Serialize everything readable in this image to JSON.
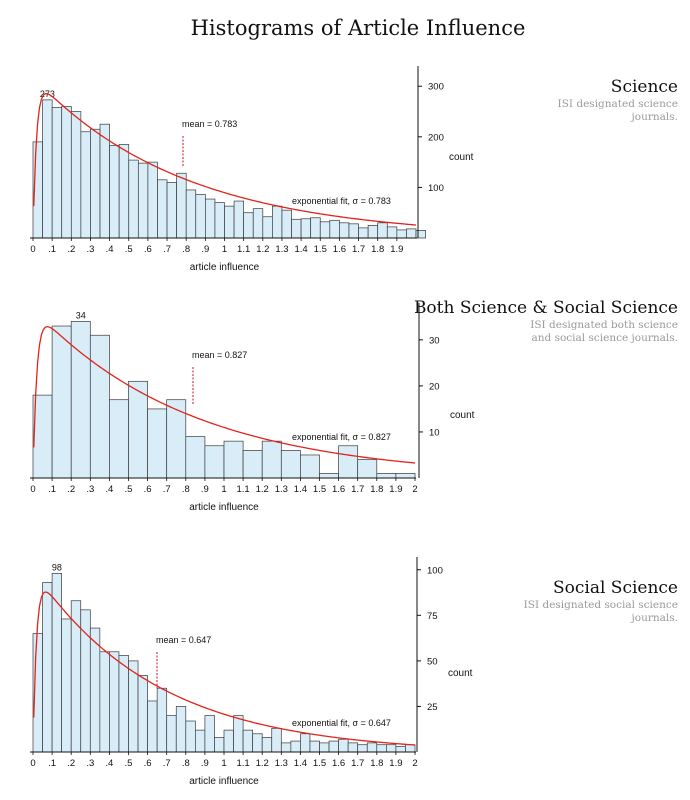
{
  "page_title": "Histograms of Article Influence",
  "chart_data": [
    {
      "type": "bar",
      "title": "Science",
      "description": [
        "ISI designated science",
        "journals."
      ],
      "xlabel": "article influence",
      "ylabel": "count",
      "xlim": [
        0,
        2
      ],
      "ylim": [
        0,
        340
      ],
      "x_ticks": [
        "0",
        ".1",
        ".2",
        ".3",
        ".4",
        ".5",
        ".6",
        ".7",
        ".8",
        ".9",
        "1",
        "1.1",
        "1.2",
        "1.3",
        "1.4",
        "1.5",
        "1.6",
        "1.7",
        "1.8",
        "1.9"
      ],
      "y_ticks": [
        100,
        200,
        300
      ],
      "bin_width": 0.05,
      "values": [
        190,
        273,
        258,
        260,
        250,
        210,
        215,
        225,
        183,
        185,
        154,
        148,
        150,
        115,
        110,
        128,
        95,
        86,
        77,
        70,
        63,
        73,
        50,
        58,
        42,
        63,
        55,
        37,
        38,
        40,
        32,
        35,
        30,
        28,
        20,
        25,
        30,
        22,
        16,
        18,
        15
      ],
      "peak_label": "273",
      "mean": 0.783,
      "mean_label": "mean = 0.783",
      "fit_label": "exponential fit,  σ = 0.783"
    },
    {
      "type": "bar",
      "title": "Both Science & Social Science",
      "description": [
        "ISI designated both science",
        "and social science journals."
      ],
      "xlabel": "article influence",
      "ylabel": "count",
      "xlim": [
        0,
        2
      ],
      "ylim": [
        0,
        38
      ],
      "x_ticks": [
        "0",
        ".1",
        ".2",
        ".3",
        ".4",
        ".5",
        ".6",
        ".7",
        ".8",
        ".9",
        "1",
        "1.1",
        "1.2",
        "1.3",
        "1.4",
        "1.5",
        "1.6",
        "1.7",
        "1.8",
        "1.9",
        "2"
      ],
      "y_ticks": [
        10,
        20,
        30
      ],
      "bin_width": 0.1,
      "values": [
        18,
        33,
        34,
        31,
        17,
        21,
        15,
        17,
        9,
        7,
        8,
        6,
        8,
        6,
        5,
        1,
        7,
        4,
        1,
        1
      ],
      "peak_label": "34",
      "mean": 0.827,
      "mean_label": "mean = 0.827",
      "fit_label": "exponential fit,  σ = 0.827"
    },
    {
      "type": "bar",
      "title": "Social Science",
      "description": [
        "ISI designated social science",
        "journals."
      ],
      "xlabel": "article influence",
      "ylabel": "count",
      "xlim": [
        0,
        2
      ],
      "ylim": [
        0,
        107
      ],
      "x_ticks": [
        "0",
        ".1",
        ".2",
        ".3",
        ".4",
        ".5",
        ".6",
        ".7",
        ".8",
        ".9",
        "1",
        "1.1",
        "1.2",
        "1.3",
        "1.4",
        "1.5",
        "1.6",
        "1.7",
        "1.8",
        "1.9",
        "2"
      ],
      "y_ticks": [
        25,
        50,
        75,
        100
      ],
      "bin_width": 0.05,
      "values": [
        65,
        93,
        98,
        73,
        83,
        78,
        68,
        55,
        55,
        53,
        50,
        42,
        28,
        35,
        20,
        25,
        17,
        12,
        20,
        8,
        12,
        20,
        12,
        10,
        8,
        13,
        5,
        6,
        10,
        6,
        5,
        6,
        7,
        5,
        4,
        5,
        4,
        4,
        3,
        4
      ],
      "peak_label": "98",
      "mean": 0.647,
      "mean_label": "mean = 0.647",
      "fit_label": "exponential fit,  σ = 0.647"
    }
  ],
  "colors": {
    "bar_fill": "#d8edf8",
    "bar_stroke": "#3a3a3a",
    "fit_line": "#e2231a",
    "mean_line": "#c8102e",
    "axis": "#111111",
    "description_text": "#9a9a9a"
  }
}
